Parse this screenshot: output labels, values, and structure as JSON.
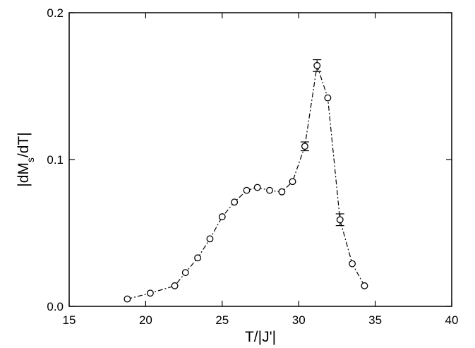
{
  "chart_data": {
    "type": "scatter",
    "xlabel": "T/|J'|",
    "ylabel": {
      "pre": "|dM",
      "sub": "s",
      "post": "/dT|"
    },
    "xlim": [
      15,
      40
    ],
    "ylim": [
      0,
      0.2
    ],
    "xticks": [
      15,
      20,
      25,
      30,
      35,
      40
    ],
    "xtick_labels": [
      "15",
      "20",
      "25",
      "30",
      "35",
      "40"
    ],
    "yticks": [
      0,
      0.1,
      0.2
    ],
    "ytick_labels": [
      "0.0",
      "0.1",
      "0.2"
    ],
    "grid": false,
    "series": [
      {
        "line_style": "dash-dot",
        "marker": "open-circle",
        "x": [
          18.8,
          20.3,
          21.9,
          22.6,
          23.4,
          24.2,
          25.0,
          25.8,
          26.6,
          27.3,
          28.1,
          28.9,
          29.6,
          30.4,
          31.2,
          31.9,
          32.7,
          33.5,
          34.3
        ],
        "y": [
          0.005,
          0.009,
          0.014,
          0.023,
          0.033,
          0.046,
          0.061,
          0.071,
          0.079,
          0.081,
          0.079,
          0.078,
          0.085,
          0.109,
          0.164,
          0.142,
          0.059,
          0.029,
          0.014
        ],
        "yerr": [
          0,
          0,
          0,
          0,
          0,
          0,
          0,
          0,
          0,
          0,
          0,
          0,
          0,
          0.003,
          0.004,
          0,
          0.004,
          0,
          0
        ]
      }
    ]
  }
}
